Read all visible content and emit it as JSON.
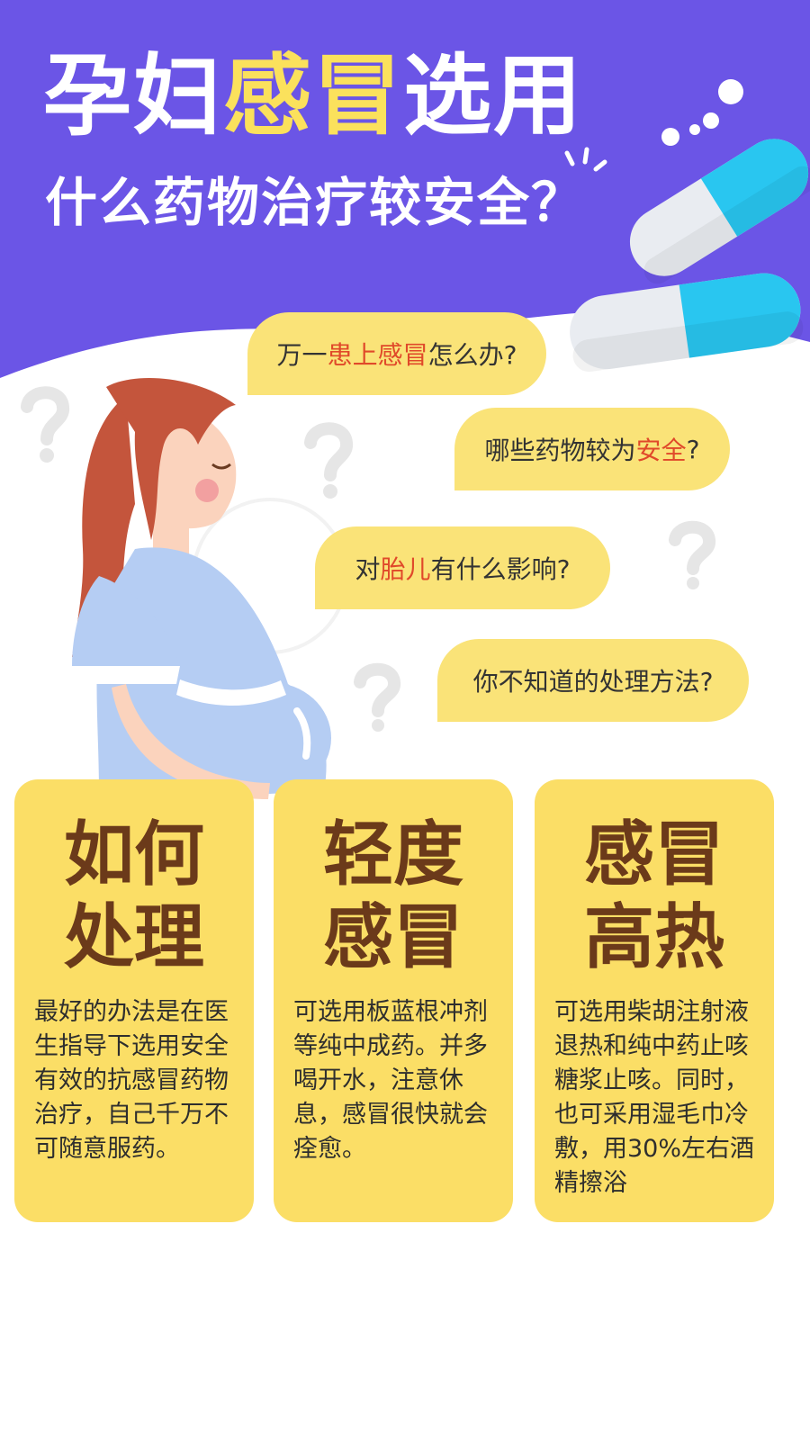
{
  "header": {
    "title_part1": "孕妇",
    "title_highlight": "感冒",
    "title_part2": "选用",
    "subtitle": "什么药物治疗较安全？"
  },
  "questions": [
    {
      "before": "万一",
      "highlight": "患上感冒",
      "after": "怎么办?"
    },
    {
      "before": "哪些药物较为",
      "highlight": "安全",
      "after": "?"
    },
    {
      "before": "对",
      "highlight": "胎儿",
      "after": "有什么影响?"
    },
    {
      "before": "你不知道的处理方法?",
      "highlight": "",
      "after": ""
    }
  ],
  "cards": [
    {
      "heading_line1": "如何",
      "heading_line2": "处理",
      "text": "最好的办法是在医生指导下选用安全有效的抗感冒药物治疗，自己千万不可随意服药。"
    },
    {
      "heading_line1": "轻度",
      "heading_line2": "感冒",
      "text": "可选用板蓝根冲剂等纯中成药。并多喝开水，注意休息，感冒很快就会痊愈。"
    },
    {
      "heading_line1": "感冒",
      "heading_line2": "高热",
      "text": "可选用柴胡注射液退热和纯中药止咳糖浆止咳。同时，也可采用湿毛巾冷敷，用30%左右酒精擦浴"
    }
  ],
  "icons": [
    "capsule-icon",
    "question-mark-icon",
    "pregnant-woman-illustration"
  ],
  "colors": {
    "header_bg": "#6b55e6",
    "title_highlight": "#fbe15c",
    "bubble_bg": "#fae378",
    "bubble_highlight": "#e0492a",
    "card_bg": "#fbde66",
    "card_heading": "#6b3a1a",
    "capsule_blue": "#29c6f0"
  }
}
